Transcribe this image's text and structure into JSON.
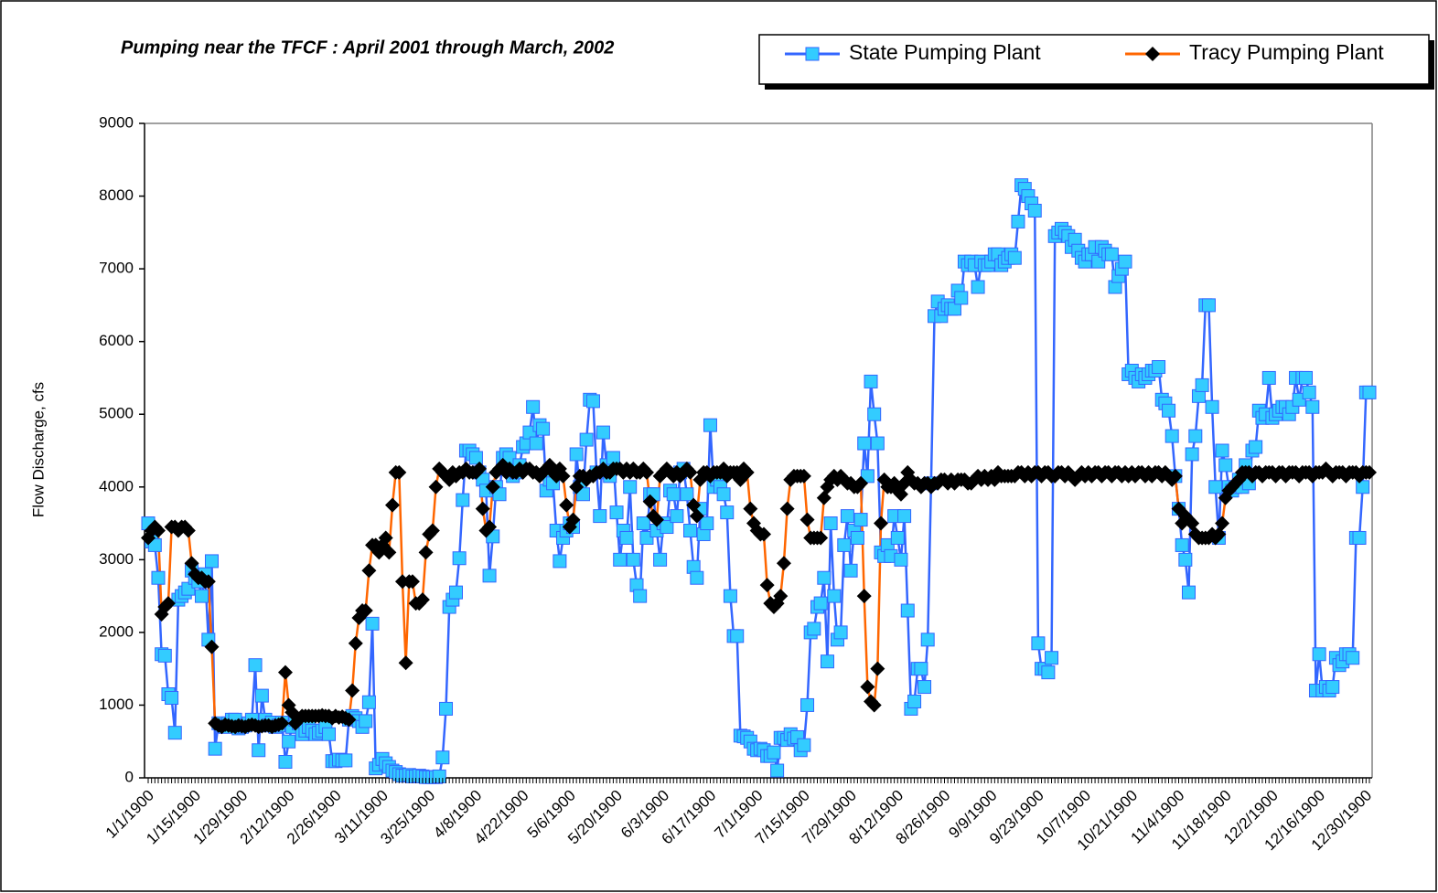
{
  "chart_data": {
    "type": "line",
    "title": "Pumping near the TFCF : April 2001 through March, 2002",
    "y_label": "Flow Discharge, cfs",
    "ylim": [
      0,
      9000
    ],
    "yticks": [
      0,
      1000,
      2000,
      3000,
      4000,
      5000,
      6000,
      7000,
      8000,
      9000
    ],
    "grid": false,
    "legend": "top-right",
    "categories": [
      "1/1/1900",
      null,
      null,
      null,
      null,
      null,
      null,
      null,
      null,
      null,
      null,
      null,
      null,
      null,
      "1/15/1900",
      null,
      null,
      null,
      null,
      null,
      null,
      null,
      null,
      null,
      null,
      null,
      null,
      null,
      "1/29/1900",
      null,
      null,
      null,
      null,
      null,
      null,
      null,
      null,
      null,
      null,
      null,
      null,
      null,
      "2/12/1900",
      null,
      null,
      null,
      null,
      null,
      null,
      null,
      null,
      null,
      null,
      null,
      null,
      null,
      "2/26/1900",
      null,
      null,
      null,
      null,
      null,
      null,
      null,
      null,
      null,
      null,
      null,
      null,
      null,
      "3/11/1900",
      null,
      null,
      null,
      null,
      null,
      null,
      null,
      null,
      null,
      null,
      null,
      null,
      null,
      "3/25/1900",
      null,
      null,
      null,
      null,
      null,
      null,
      null,
      null,
      null,
      null,
      null,
      null,
      null,
      "4/8/1900",
      null,
      null,
      null,
      null,
      null,
      null,
      null,
      null,
      null,
      null,
      null,
      null,
      null,
      "4/22/1900",
      null,
      null,
      null,
      null,
      null,
      null,
      null,
      null,
      null,
      null,
      null,
      null,
      null,
      "5/6/1900",
      null,
      null,
      null,
      null,
      null,
      null,
      null,
      null,
      null,
      null,
      null,
      null,
      null,
      "5/20/1900",
      null,
      null,
      null,
      null,
      null,
      null,
      null,
      null,
      null,
      null,
      null,
      null,
      null,
      "6/3/1900",
      null,
      null,
      null,
      null,
      null,
      null,
      null,
      null,
      null,
      null,
      null,
      null,
      null,
      "6/17/1900",
      null,
      null,
      null,
      null,
      null,
      null,
      null,
      null,
      null,
      null,
      null,
      null,
      null,
      "7/1/1900",
      null,
      null,
      null,
      null,
      null,
      null,
      null,
      null,
      null,
      null,
      null,
      null,
      null,
      "7/15/1900",
      null,
      null,
      null,
      null,
      null,
      null,
      null,
      null,
      null,
      null,
      null,
      null,
      null,
      "7/29/1900",
      null,
      null,
      null,
      null,
      null,
      null,
      null,
      null,
      null,
      null,
      null,
      null,
      null,
      "8/12/1900",
      null,
      null,
      null,
      null,
      null,
      null,
      null,
      null,
      null,
      null,
      null,
      null,
      null,
      "8/26/1900",
      null,
      null,
      null,
      null,
      null,
      null,
      null,
      null,
      null,
      null,
      null,
      null,
      null,
      "9/9/1900",
      null,
      null,
      null,
      null,
      null,
      null,
      null,
      null,
      null,
      null,
      null,
      null,
      null,
      "9/23/1900",
      null,
      null,
      null,
      null,
      null,
      null,
      null,
      null,
      null,
      null,
      null,
      null,
      null,
      "10/7/1900",
      null,
      null,
      null,
      null,
      null,
      null,
      null,
      null,
      null,
      null,
      null,
      null,
      null,
      "10/21/1900",
      null,
      null,
      null,
      null,
      null,
      null,
      null,
      null,
      null,
      null,
      null,
      null,
      null,
      "11/4/1900",
      null,
      null,
      null,
      null,
      null,
      null,
      null,
      null,
      null,
      null,
      null,
      null,
      null,
      "11/18/1900",
      null,
      null,
      null,
      null,
      null,
      null,
      null,
      null,
      null,
      null,
      null,
      null,
      null,
      "12/2/1900",
      null,
      null,
      null,
      null,
      null,
      null,
      null,
      null,
      null,
      null,
      null,
      null,
      null,
      "12/16/1900",
      null,
      null,
      null,
      null,
      null,
      null,
      null,
      null,
      null,
      null,
      null,
      null,
      null,
      "12/30/1900",
      null
    ],
    "series": [
      {
        "name": "State Pumping Plant",
        "color": "#3366ff",
        "marker": "square",
        "marker_color": "#33ccff",
        "values": [
          3500,
          3250,
          3200,
          2750,
          1700,
          1680,
          1150,
          1100,
          620,
          2450,
          2500,
          2550,
          2600,
          2850,
          2750,
          2700,
          2500,
          2800,
          1900,
          2980,
          400,
          750,
          720,
          700,
          750,
          800,
          800,
          680,
          700,
          720,
          750,
          800,
          1550,
          380,
          1130,
          800,
          720,
          760,
          700,
          720,
          760,
          220,
          500,
          700,
          800,
          750,
          600,
          650,
          700,
          650,
          600,
          620,
          650,
          700,
          600,
          230,
          230,
          250,
          240,
          240,
          800,
          850,
          820,
          780,
          700,
          780,
          1040,
          2120,
          130,
          180,
          260,
          200,
          150,
          100,
          80,
          50,
          30,
          30,
          40,
          20,
          20,
          30,
          20,
          10,
          10,
          10,
          10,
          20,
          280,
          950,
          2350,
          2450,
          2550,
          3020,
          3820,
          4500,
          4500,
          4450,
          4400,
          4200,
          4100,
          3950,
          2780,
          3320,
          4000,
          3900,
          4400,
          4450,
          4400,
          4150,
          4200,
          4300,
          4550,
          4600,
          4750,
          5100,
          4600,
          4850,
          4800,
          3950,
          4100,
          4050,
          3400,
          2980,
          3300,
          3400,
          3500,
          3450,
          4450,
          4000,
          3900,
          4650,
          5200,
          5180,
          4200,
          3600,
          4750,
          4300,
          4150,
          4400,
          3650,
          3000,
          3400,
          3300,
          4000,
          3000,
          2650,
          2500,
          3500,
          3300,
          3900,
          3900,
          3400,
          3000,
          3500,
          3450,
          3950,
          3900,
          3600,
          4200,
          4250,
          3900,
          3400,
          2900,
          2750,
          3700,
          3350,
          3500,
          4850,
          4000,
          4100,
          4000,
          3900,
          3650,
          2500,
          1950,
          1950,
          580,
          570,
          550,
          500,
          400,
          380,
          400,
          380,
          300,
          300,
          350,
          100,
          550,
          550,
          520,
          600,
          540,
          560,
          380,
          450,
          1000,
          2000,
          2050,
          2350,
          2400,
          2750,
          1600,
          3500,
          2500,
          1900,
          2000,
          3200,
          3600,
          2850,
          3400,
          3300,
          3550,
          4600,
          4150,
          5450,
          5000,
          4600,
          3100,
          3050,
          3200,
          3050,
          3600,
          3300,
          3000,
          3600,
          2300,
          950,
          1050,
          1500,
          1500,
          1250,
          1900,
          4050,
          6350,
          6550,
          6350,
          6450,
          6500,
          6450,
          6450,
          6700,
          6600,
          7100,
          7050,
          7100,
          7050,
          6750,
          7100,
          7050,
          7050,
          7100,
          7200,
          7200,
          7050,
          7100,
          7150,
          7200,
          7150,
          7650,
          8150,
          8100,
          8000,
          7900,
          7800,
          1850,
          1500,
          1500,
          1450,
          1650,
          7450,
          7500,
          7550,
          7500,
          7450,
          7300,
          7400,
          7250,
          7150,
          7100,
          7200,
          7200,
          7300,
          7100,
          7300,
          7250,
          7200,
          7200,
          6750,
          6900,
          7000,
          7100,
          5550,
          5600,
          5500,
          5450,
          5550,
          5500,
          5550,
          5600,
          5600,
          5650,
          5200,
          5150,
          5050,
          4700,
          4150,
          3700,
          3200,
          3000,
          2550,
          4450,
          4700,
          5250,
          5400,
          6500,
          6500,
          5100,
          4000,
          3300,
          4500,
          4300,
          4000,
          3950,
          4000,
          4100,
          4000,
          4300,
          4050,
          4500,
          4550,
          5050,
          4950,
          5000,
          5500,
          4950,
          5000,
          5050,
          5100,
          5100,
          5000,
          5100,
          5500,
          5200,
          5500,
          5500,
          5300,
          5100,
          1200,
          1700,
          1200,
          1250,
          1200,
          1250,
          1650,
          1550,
          1600,
          1700,
          1700,
          1650,
          3300,
          3300,
          4000,
          5300,
          5300
        ]
      },
      {
        "name": "Tracy Pumping Plant",
        "color": "#ff6600",
        "marker": "diamond",
        "marker_color": "#000000",
        "values": [
          3300,
          3400,
          3450,
          3400,
          2250,
          2350,
          2400,
          3450,
          3450,
          3400,
          3450,
          3450,
          3400,
          2950,
          2800,
          2750,
          2750,
          2700,
          2700,
          1800,
          750,
          720,
          700,
          730,
          720,
          710,
          700,
          720,
          710,
          700,
          720,
          730,
          720,
          700,
          710,
          720,
          720,
          700,
          720,
          730,
          750,
          1450,
          1000,
          900,
          750,
          800,
          850,
          850,
          850,
          850,
          850,
          850,
          860,
          850,
          850,
          820,
          850,
          830,
          840,
          820,
          800,
          1200,
          1850,
          2200,
          2300,
          2300,
          2850,
          3200,
          3200,
          3100,
          3200,
          3300,
          3100,
          3750,
          4200,
          4200,
          2700,
          1580,
          2700,
          2700,
          2400,
          2400,
          2450,
          3100,
          3350,
          3400,
          4000,
          4250,
          4200,
          4150,
          4100,
          4200,
          4150,
          4200,
          4200,
          4250,
          4200,
          4200,
          4200,
          4250,
          3700,
          3400,
          3450,
          4000,
          4200,
          4250,
          4300,
          4200,
          4250,
          4200,
          4200,
          4250,
          4200,
          4250,
          4250,
          4200,
          4200,
          4150,
          4200,
          4250,
          4300,
          4200,
          4150,
          4250,
          4150,
          3750,
          3450,
          3550,
          4000,
          4150,
          4150,
          4100,
          4150,
          4150,
          4200,
          4200,
          4250,
          4200,
          4200,
          4250,
          4250,
          4250,
          4200,
          4250,
          4200,
          4250,
          4200,
          4200,
          4250,
          4200,
          3800,
          3600,
          3550,
          4150,
          4200,
          4250,
          4200,
          4150,
          4200,
          4150,
          4200,
          4250,
          4200,
          3750,
          3600,
          4100,
          4200,
          4200,
          4150,
          4200,
          4200,
          4200,
          4250,
          4150,
          4200,
          4200,
          4200,
          4100,
          4250,
          4200,
          3700,
          3500,
          3400,
          3350,
          3350,
          2650,
          2400,
          2350,
          2400,
          2500,
          2950,
          3700,
          4100,
          4150,
          4150,
          4150,
          4150,
          3550,
          3300,
          3300,
          3300,
          3300,
          3850,
          4000,
          4100,
          4150,
          4100,
          4150,
          4100,
          4050,
          4050,
          4000,
          4000,
          4050,
          2500,
          1250,
          1050,
          1000,
          1500,
          3500,
          4100,
          4000,
          4000,
          4050,
          3950,
          3900,
          4050,
          4200,
          4100,
          4050,
          4050,
          4000,
          4050,
          4050,
          4000,
          4050,
          4050,
          4100,
          4100,
          4050,
          4100,
          4050,
          4100,
          4100,
          4100,
          4050,
          4050,
          4100,
          4150,
          4100,
          4150,
          4100,
          4150,
          4100,
          4200,
          4150,
          4150,
          4150,
          4150,
          4150,
          4200,
          4200,
          4150,
          4200,
          4150,
          4200,
          4200,
          4150,
          4200,
          4200,
          4150,
          4150,
          4200,
          4200,
          4150,
          4200,
          4150,
          4100,
          4150,
          4200,
          4150,
          4200,
          4150,
          4200,
          4200,
          4150,
          4200,
          4200,
          4150,
          4200,
          4200,
          4150,
          4200,
          4150,
          4200,
          4150,
          4200,
          4200,
          4150,
          4200,
          4150,
          4200,
          4200,
          4150,
          4200,
          4150,
          4100,
          4150,
          3700,
          3500,
          3600,
          3550,
          3500,
          3350,
          3300,
          3300,
          3300,
          3300,
          3350,
          3300,
          3350,
          3500,
          3850,
          3950,
          4000,
          4050,
          4100,
          4200,
          4200,
          4200,
          4150,
          4200,
          4200,
          4150,
          4200,
          4200,
          4200,
          4150,
          4200,
          4200,
          4150,
          4200,
          4200,
          4200,
          4150,
          4200,
          4200,
          4200,
          4150,
          4200,
          4200,
          4200,
          4250,
          4200,
          4150,
          4200,
          4200,
          4200,
          4150,
          4200,
          4200,
          4200,
          4150,
          4200,
          4200,
          4200
        ]
      }
    ]
  }
}
